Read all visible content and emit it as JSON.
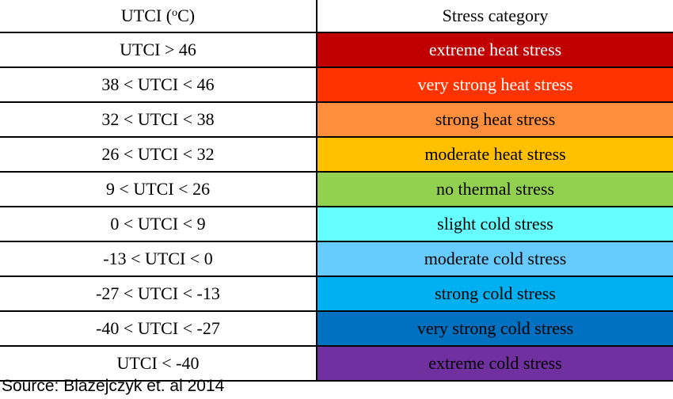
{
  "table": {
    "headers": {
      "range_prefix": "UTCI (",
      "range_degree": "o",
      "range_suffix": "C)",
      "category": "Stress category"
    },
    "rows": [
      {
        "range": "UTCI > 46",
        "category": "extreme heat stress",
        "color": "#c00000",
        "text_color": "#ffffff"
      },
      {
        "range": "38 < UTCI < 46",
        "category": "very strong heat stress",
        "color": "#ff3300",
        "text_color": "#ffffff"
      },
      {
        "range": "32 < UTCI < 38",
        "category": "strong heat stress",
        "color": "#ff8f3c",
        "text_color": "#000000"
      },
      {
        "range": "26 < UTCI < 32",
        "category": "moderate heat stress",
        "color": "#ffc000",
        "text_color": "#000000"
      },
      {
        "range": "9 < UTCI < 26",
        "category": "no thermal stress",
        "color": "#92d050",
        "text_color": "#000000"
      },
      {
        "range": "0 < UTCI < 9",
        "category": "slight cold stress",
        "color": "#66ffff",
        "text_color": "#000000"
      },
      {
        "range": "-13 < UTCI < 0",
        "category": "moderate cold stress",
        "color": "#66ccff",
        "text_color": "#000000"
      },
      {
        "range": "-27 < UTCI < -13",
        "category": "strong cold stress",
        "color": "#00b0f0",
        "text_color": "#000000"
      },
      {
        "range": "-40 < UTCI < -27",
        "category": "very strong cold stress",
        "color": "#0070c0",
        "text_color": "#000000"
      },
      {
        "range": "UTCI < -40",
        "category": "extreme cold stress",
        "color": "#7030a0",
        "text_color": "#000000"
      }
    ]
  },
  "source": "Source: Blazejczyk et. al 2014"
}
